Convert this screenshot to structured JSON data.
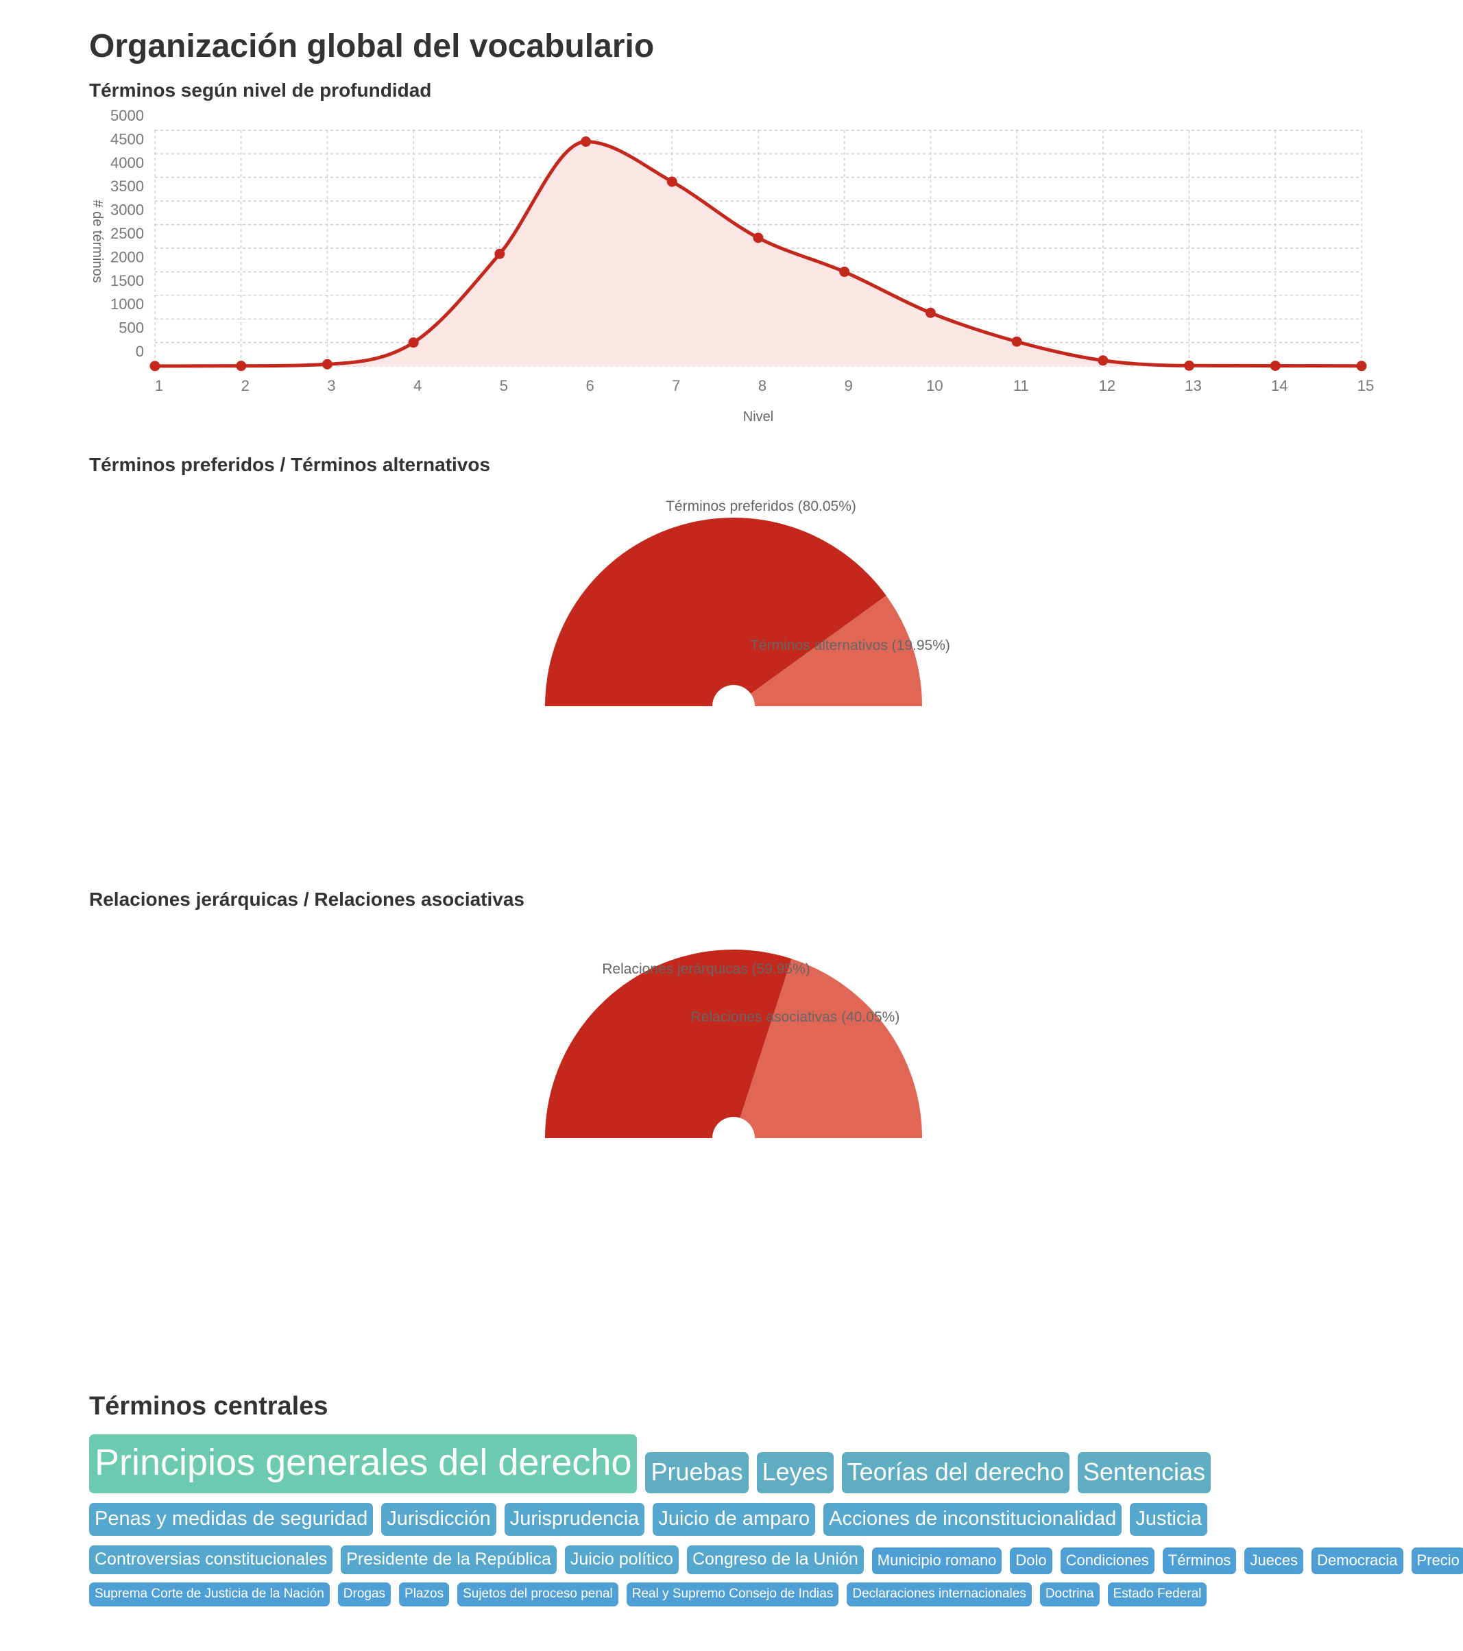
{
  "page": {
    "title": "Organización global del vocabulario"
  },
  "colors": {
    "line": "#c4281d",
    "area_fill": "#fbe6e5",
    "grid": "#cfcfcf",
    "slice_primary": "#c4281d",
    "slice_secondary": "#e06656",
    "tag_level_1": "#6ccbae",
    "tag_level_2": "#5fadc2",
    "tag_level_3": "#55a7cd",
    "tag_level_4": "#4f9fd7"
  },
  "chart_data": [
    {
      "type": "area",
      "title": "Términos según nivel de profundidad",
      "xlabel": "Nivel",
      "ylabel": "# de términos",
      "x": [
        1,
        2,
        3,
        4,
        5,
        6,
        7,
        8,
        9,
        10,
        11,
        12,
        13,
        14,
        15
      ],
      "y": [
        2,
        5,
        40,
        500,
        2380,
        4760,
        3910,
        2720,
        2000,
        1130,
        520,
        120,
        10,
        8,
        3
      ],
      "ylim": [
        0,
        5000
      ],
      "yticks": [
        0,
        500,
        1000,
        1500,
        2000,
        2500,
        3000,
        3500,
        4000,
        4500,
        5000
      ],
      "grid": true,
      "curve": "smooth"
    },
    {
      "type": "pie",
      "subtype": "semi-donut",
      "title": "Términos preferidos / Términos alternativos",
      "slices": [
        {
          "label": "Términos preferidos (80.05%)",
          "value": 80.05
        },
        {
          "label": "Términos alternativos (19.95%)",
          "value": 19.95
        }
      ]
    },
    {
      "type": "pie",
      "subtype": "semi-donut",
      "title": "Relaciones jerárquicas / Relaciones asociativas",
      "slices": [
        {
          "label": "Relaciones jerárquicas (59.95%)",
          "value": 59.95
        },
        {
          "label": "Relaciones asociativas (40.05%)",
          "value": 40.05
        }
      ]
    }
  ],
  "central_terms": {
    "title": "Términos centrales",
    "rows": [
      [
        {
          "label": "Principios generales del derecho",
          "level": 1
        },
        {
          "label": "Pruebas",
          "level": 2
        },
        {
          "label": "Leyes",
          "level": 2
        },
        {
          "label": "Teorías del derecho",
          "level": 2
        },
        {
          "label": "Sentencias",
          "level": 2
        }
      ],
      [
        {
          "label": "Penas y medidas de seguridad",
          "level": 3
        },
        {
          "label": "Jurisdicción",
          "level": 3
        },
        {
          "label": "Jurisprudencia",
          "level": 3
        },
        {
          "label": "Juicio de amparo",
          "level": 3
        },
        {
          "label": "Acciones de inconstitucionalidad",
          "level": 3
        },
        {
          "label": "Justicia",
          "level": 3
        }
      ],
      [
        {
          "label": "Controversias constitucionales",
          "level": 4
        },
        {
          "label": "Presidente de la República",
          "level": 4
        },
        {
          "label": "Juicio político",
          "level": 4
        },
        {
          "label": "Congreso de la Unión",
          "level": 4
        },
        {
          "label": "Municipio romano",
          "level": 5
        },
        {
          "label": "Dolo",
          "level": 5
        },
        {
          "label": "Condiciones",
          "level": 5
        },
        {
          "label": "Términos",
          "level": 5
        },
        {
          "label": "Jueces",
          "level": 5
        },
        {
          "label": "Democracia",
          "level": 5
        },
        {
          "label": "Precio",
          "level": 5
        }
      ],
      [
        {
          "label": "Suprema Corte de Justicia de la Nación",
          "level": 6
        },
        {
          "label": "Drogas",
          "level": 6
        },
        {
          "label": "Plazos",
          "level": 6
        },
        {
          "label": "Sujetos del proceso penal",
          "level": 6
        },
        {
          "label": "Real y Supremo Consejo de Indias",
          "level": 6
        },
        {
          "label": "Declaraciones internacionales",
          "level": 6
        },
        {
          "label": "Doctrina",
          "level": 6
        },
        {
          "label": "Estado Federal",
          "level": 6
        }
      ]
    ]
  }
}
